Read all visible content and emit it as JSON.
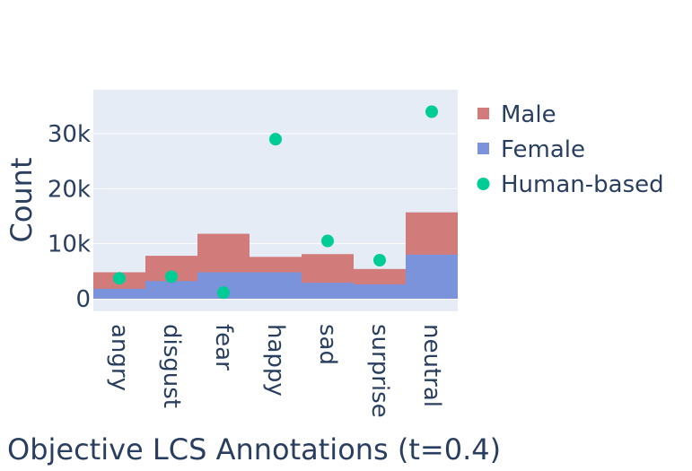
{
  "chart_data": {
    "type": "bar",
    "title": "",
    "xlabel": "Objective LCS Annotations (t=0.4)",
    "ylabel": "Count",
    "categories": [
      "angry",
      "disgust",
      "fear",
      "happy",
      "sad",
      "surprise",
      "neutral"
    ],
    "ylim": [
      -2300,
      38000
    ],
    "yticks": [
      0,
      10000,
      20000,
      30000
    ],
    "ytick_labels": [
      "0",
      "10k",
      "20k",
      "30k"
    ],
    "grid": true,
    "legend_position": "right",
    "series": [
      {
        "name": "Male",
        "kind": "bar",
        "color": "#d17b7b",
        "values": [
          4800,
          7800,
          11800,
          7600,
          8100,
          5400,
          15700
        ]
      },
      {
        "name": "Female",
        "kind": "bar",
        "color": "#7b93da",
        "values": [
          1800,
          3200,
          4800,
          4800,
          2900,
          2600,
          8000
        ]
      },
      {
        "name": "Human-based",
        "kind": "scatter",
        "color": "#00cc96",
        "values": [
          3700,
          4000,
          1100,
          29000,
          10500,
          7000,
          34000
        ]
      }
    ]
  }
}
